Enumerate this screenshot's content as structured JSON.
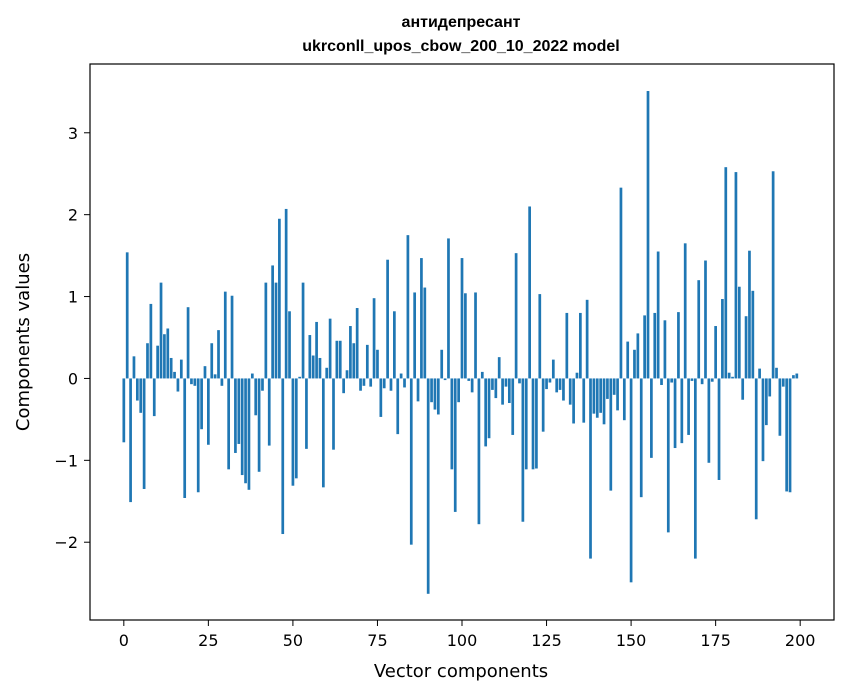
{
  "chart_data": {
    "type": "bar",
    "title_line1": "антидепресант",
    "title_line2": "ukrconll_upos_cbow_200_10_2022 model",
    "xlabel": "Vector components",
    "ylabel": "Components values",
    "xlim": [
      -10,
      210
    ],
    "ylim": [
      -2.95,
      3.84
    ],
    "xticks": [
      0,
      25,
      50,
      75,
      100,
      125,
      150,
      175,
      200
    ],
    "yticks": [
      -2,
      -1,
      0,
      1,
      2,
      3
    ],
    "ytick_labels": [
      "−2",
      "−1",
      "0",
      "1",
      "2",
      "3"
    ],
    "color": "#1f77b4",
    "grid": false,
    "values": [
      -0.78,
      1.54,
      -1.51,
      0.27,
      -0.27,
      -0.42,
      -1.35,
      0.43,
      0.91,
      -0.46,
      0.4,
      1.17,
      0.54,
      0.61,
      0.25,
      0.08,
      -0.16,
      0.23,
      -1.46,
      0.87,
      -0.07,
      -0.09,
      -1.39,
      -0.62,
      0.15,
      -0.81,
      0.43,
      0.05,
      0.59,
      -0.09,
      1.06,
      -1.11,
      1.01,
      -0.91,
      -0.8,
      -1.18,
      -1.28,
      -1.36,
      0.06,
      -0.45,
      -1.14,
      -0.15,
      1.17,
      -0.82,
      1.38,
      1.17,
      1.95,
      -1.9,
      2.07,
      0.82,
      -1.31,
      -1.22,
      0.02,
      1.17,
      -0.86,
      0.53,
      0.28,
      0.69,
      0.25,
      -1.33,
      0.13,
      0.73,
      -0.87,
      0.46,
      0.46,
      -0.18,
      0.1,
      0.64,
      0.43,
      0.86,
      -0.15,
      -0.09,
      0.41,
      -0.1,
      0.98,
      0.35,
      -0.47,
      -0.12,
      1.45,
      -0.15,
      0.82,
      -0.68,
      0.06,
      -0.11,
      1.75,
      -2.03,
      1.05,
      -0.28,
      1.47,
      1.11,
      -2.63,
      -0.29,
      -0.38,
      -0.44,
      0.35,
      -0.02,
      1.71,
      -1.11,
      -1.63,
      -0.29,
      1.47,
      1.04,
      -0.03,
      -0.17,
      1.05,
      -1.78,
      0.08,
      -0.83,
      -0.73,
      -0.14,
      -0.24,
      0.26,
      -0.32,
      -0.1,
      -0.3,
      -0.69,
      1.53,
      -0.06,
      -1.75,
      -1.11,
      2.1,
      -1.11,
      -1.1,
      1.03,
      -0.65,
      -0.13,
      -0.05,
      0.23,
      -0.17,
      -0.14,
      -0.27,
      0.8,
      -0.32,
      -0.55,
      0.07,
      0.8,
      -0.54,
      0.96,
      -2.2,
      -0.43,
      -0.48,
      -0.42,
      -0.56,
      -0.25,
      -1.37,
      -0.2,
      -0.39,
      2.33,
      -0.51,
      0.45,
      -2.49,
      0.35,
      0.55,
      -1.45,
      0.77,
      3.51,
      -0.97,
      0.8,
      1.55,
      -0.08,
      0.71,
      -1.88,
      -0.05,
      -0.85,
      0.81,
      -0.79,
      1.65,
      -0.69,
      -0.03,
      -2.2,
      1.2,
      -0.07,
      1.44,
      -1.03,
      -0.04,
      0.64,
      -1.24,
      0.97,
      2.58,
      0.07,
      0.02,
      2.52,
      1.12,
      -0.26,
      0.76,
      1.56,
      1.07,
      -1.72,
      0.12,
      -1.01,
      -0.57,
      -0.22,
      2.53,
      0.13,
      -0.7,
      -0.1,
      -1.38,
      -1.39,
      0.04,
      0.06
    ]
  }
}
